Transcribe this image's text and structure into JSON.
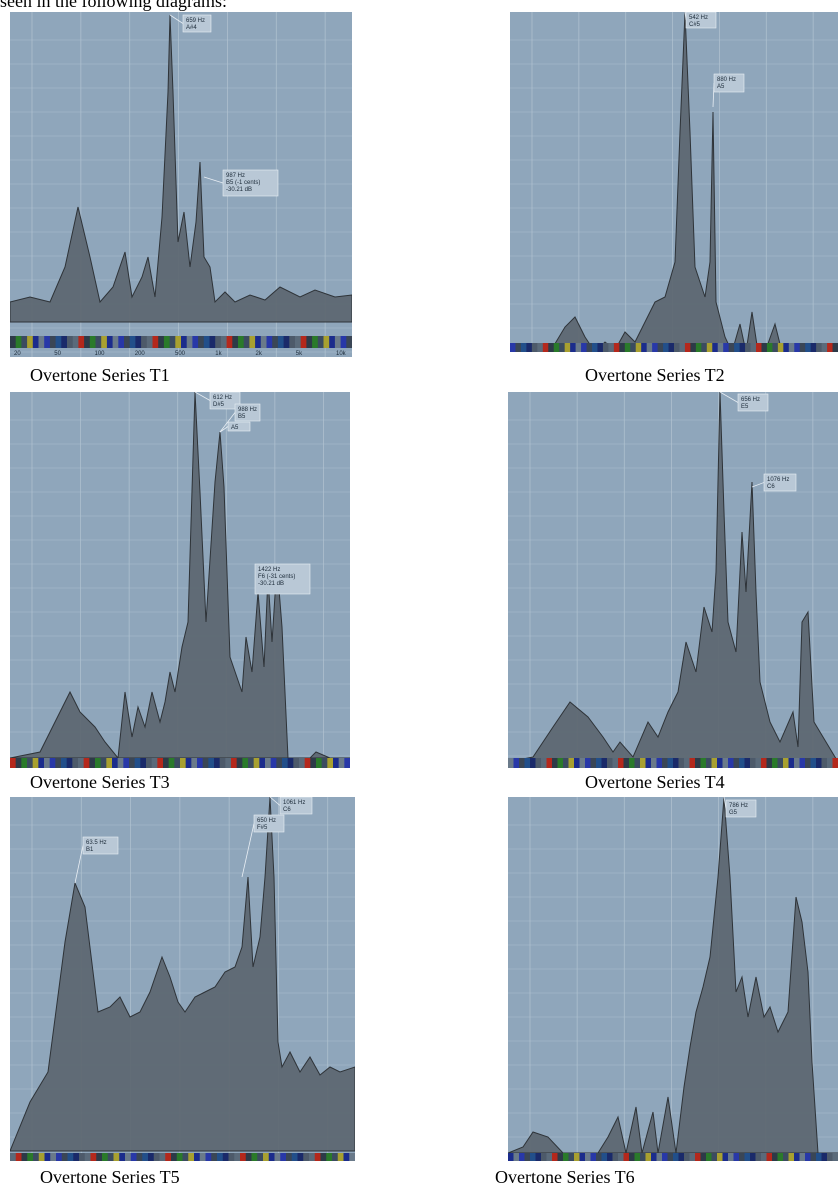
{
  "intro_text": "seen in the following diagrams:",
  "colors": {
    "background": "#8fa6bb",
    "grid": "#aec0cf",
    "fill": "#5c6670",
    "stroke": "#2e3338",
    "label_box": "#b9c8d6"
  },
  "panels": [
    {
      "caption": "Overtone Series T1",
      "axis_ticks": [
        "20",
        "50",
        "100",
        "200",
        "500",
        "1k",
        "2k",
        "5k",
        "10k"
      ],
      "annotations": [
        {
          "lines": [
            "659 Hz",
            "A#4"
          ]
        },
        {
          "lines": [
            "987 Hz",
            "B5 (-1 cents)",
            "-30.21 dB"
          ]
        }
      ]
    },
    {
      "caption": "Overtone Series T2",
      "axis_ticks": [],
      "annotations": [
        {
          "lines": [
            "542 Hz",
            "C#5"
          ]
        },
        {
          "lines": [
            "880 Hz",
            "A5"
          ]
        }
      ]
    },
    {
      "caption": "Overtone Series T3",
      "axis_ticks": [],
      "annotations": [
        {
          "lines": [
            "612 Hz",
            "D#5"
          ]
        },
        {
          "lines": [
            "988 Hz",
            "B5"
          ]
        },
        {
          "lines": [
            "A5"
          ]
        },
        {
          "lines": [
            "1422 Hz",
            "F6 (-31 cents)",
            "-30.21 dB"
          ]
        }
      ]
    },
    {
      "caption": "Overtone Series T4",
      "axis_ticks": [],
      "annotations": [
        {
          "lines": [
            "656 Hz",
            "E5"
          ]
        },
        {
          "lines": [
            "1076 Hz",
            "C6"
          ]
        }
      ]
    },
    {
      "caption": "Overtone Series T5",
      "axis_ticks": [],
      "annotations": [
        {
          "lines": [
            "63.5 Hz",
            "B1"
          ]
        },
        {
          "lines": [
            "650 Hz",
            "F#5"
          ]
        },
        {
          "lines": [
            "1061 Hz",
            "C6"
          ]
        }
      ]
    },
    {
      "caption": "Overtone Series T6",
      "axis_ticks": [],
      "annotations": [
        {
          "lines": [
            "786 Hz",
            "G5"
          ]
        }
      ]
    }
  ]
}
